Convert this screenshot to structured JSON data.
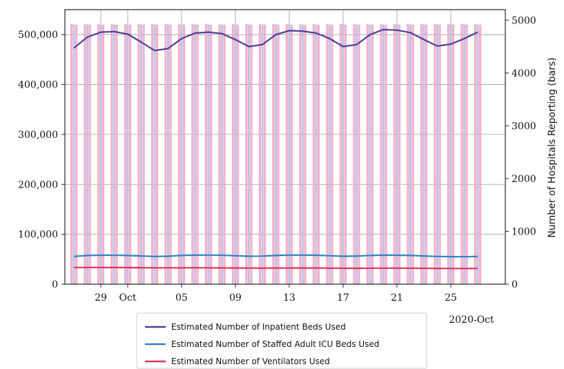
{
  "chart_data": {
    "type": "line",
    "x_dates": [
      "2020-09-27",
      "2020-09-28",
      "2020-09-29",
      "2020-09-30",
      "2020-10-01",
      "2020-10-02",
      "2020-10-03",
      "2020-10-04",
      "2020-10-05",
      "2020-10-06",
      "2020-10-07",
      "2020-10-08",
      "2020-10-09",
      "2020-10-10",
      "2020-10-11",
      "2020-10-12",
      "2020-10-13",
      "2020-10-14",
      "2020-10-15",
      "2020-10-16",
      "2020-10-17",
      "2020-10-18",
      "2020-10-19",
      "2020-10-20",
      "2020-10-21",
      "2020-10-22",
      "2020-10-23",
      "2020-10-24",
      "2020-10-25",
      "2020-10-26",
      "2020-10-27"
    ],
    "x_tick_labels": [
      "29",
      "Oct",
      "05",
      "09",
      "13",
      "17",
      "21",
      "25"
    ],
    "x_tick_dates": [
      "2020-09-29",
      "2020-10-01",
      "2020-10-05",
      "2020-10-09",
      "2020-10-13",
      "2020-10-17",
      "2020-10-21",
      "2020-10-25"
    ],
    "x_corner_label": "2020-Oct",
    "y_left": {
      "ylim": [
        0,
        550000
      ],
      "ticks": [
        0,
        100000,
        200000,
        300000,
        400000,
        500000
      ],
      "tick_labels": [
        "0",
        "100,000",
        "200,000",
        "300,000",
        "400,000",
        "500,000"
      ],
      "label": ""
    },
    "y_right": {
      "ylim": [
        0,
        5200
      ],
      "ticks": [
        0,
        1000,
        2000,
        3000,
        4000,
        5000
      ],
      "tick_labels": [
        "0",
        "1000",
        "2000",
        "3000",
        "4000",
        "5000"
      ],
      "label": "Number of Hospitals Reporting (bars)"
    },
    "series": [
      {
        "name": "Estimated Number of Inpatient Beds Used",
        "color": "#4b3f9a",
        "values": [
          473000,
          495000,
          505000,
          506000,
          501000,
          485000,
          468000,
          472000,
          492000,
          503000,
          505000,
          502000,
          490000,
          476000,
          480000,
          500000,
          508000,
          507000,
          503000,
          492000,
          476000,
          480000,
          500000,
          510000,
          509000,
          504000,
          490000,
          477000,
          481000,
          492000,
          505000
        ]
      },
      {
        "name": "Estimated Number of Staffed Adult ICU Beds Used",
        "color": "#2a83c4",
        "values": [
          55500,
          57500,
          58000,
          58000,
          57500,
          56500,
          55500,
          56000,
          57500,
          58200,
          58300,
          58000,
          57000,
          56000,
          56300,
          57500,
          58200,
          58300,
          58000,
          57000,
          56000,
          56300,
          57500,
          58200,
          58000,
          57500,
          56500,
          55500,
          55200,
          55000,
          55500
        ]
      },
      {
        "name": "Estimated Number of Ventilators Used",
        "color": "#e0325d",
        "values": [
          33500,
          33500,
          33400,
          33300,
          33200,
          33000,
          32800,
          32700,
          32800,
          32900,
          32800,
          32600,
          32400,
          32200,
          32100,
          32300,
          32400,
          32400,
          32300,
          32100,
          31900,
          31800,
          32000,
          32100,
          32100,
          32000,
          31800,
          31500,
          31400,
          31400,
          31500
        ]
      }
    ],
    "bars": {
      "axis": "right",
      "groups": [
        {
          "color": "#f2a3c0",
          "values": [
            4925,
            4925,
            4925,
            4925,
            4925,
            4925,
            4925,
            4925,
            4925,
            4925,
            4925,
            4925,
            4925,
            4925,
            4925,
            4925,
            4925,
            4925,
            4925,
            4925,
            4925,
            4925,
            4925,
            4925,
            4925,
            4925,
            4925,
            4925,
            4925,
            4925,
            4925
          ]
        },
        {
          "color": "#b9b8e6",
          "values": [
            4920,
            4920,
            4920,
            4920,
            4920,
            4920,
            4920,
            4920,
            4920,
            4920,
            4920,
            4920,
            4920,
            4920,
            4920,
            4920,
            4920,
            4920,
            4920,
            4920,
            4920,
            4920,
            4920,
            4920,
            4920,
            4920,
            4920,
            4920,
            4920,
            4920,
            4920
          ]
        },
        {
          "color": "#f2a3c0",
          "values": [
            4915,
            4915,
            4915,
            4915,
            4915,
            4915,
            4915,
            4915,
            4915,
            4915,
            4915,
            4915,
            4915,
            4915,
            4915,
            4915,
            4915,
            4915,
            4915,
            4915,
            4915,
            4915,
            4915,
            4915,
            4915,
            4915,
            4915,
            4915,
            4915,
            4915,
            4915
          ]
        }
      ]
    },
    "grid": true,
    "legend_position": "bottom-center"
  }
}
